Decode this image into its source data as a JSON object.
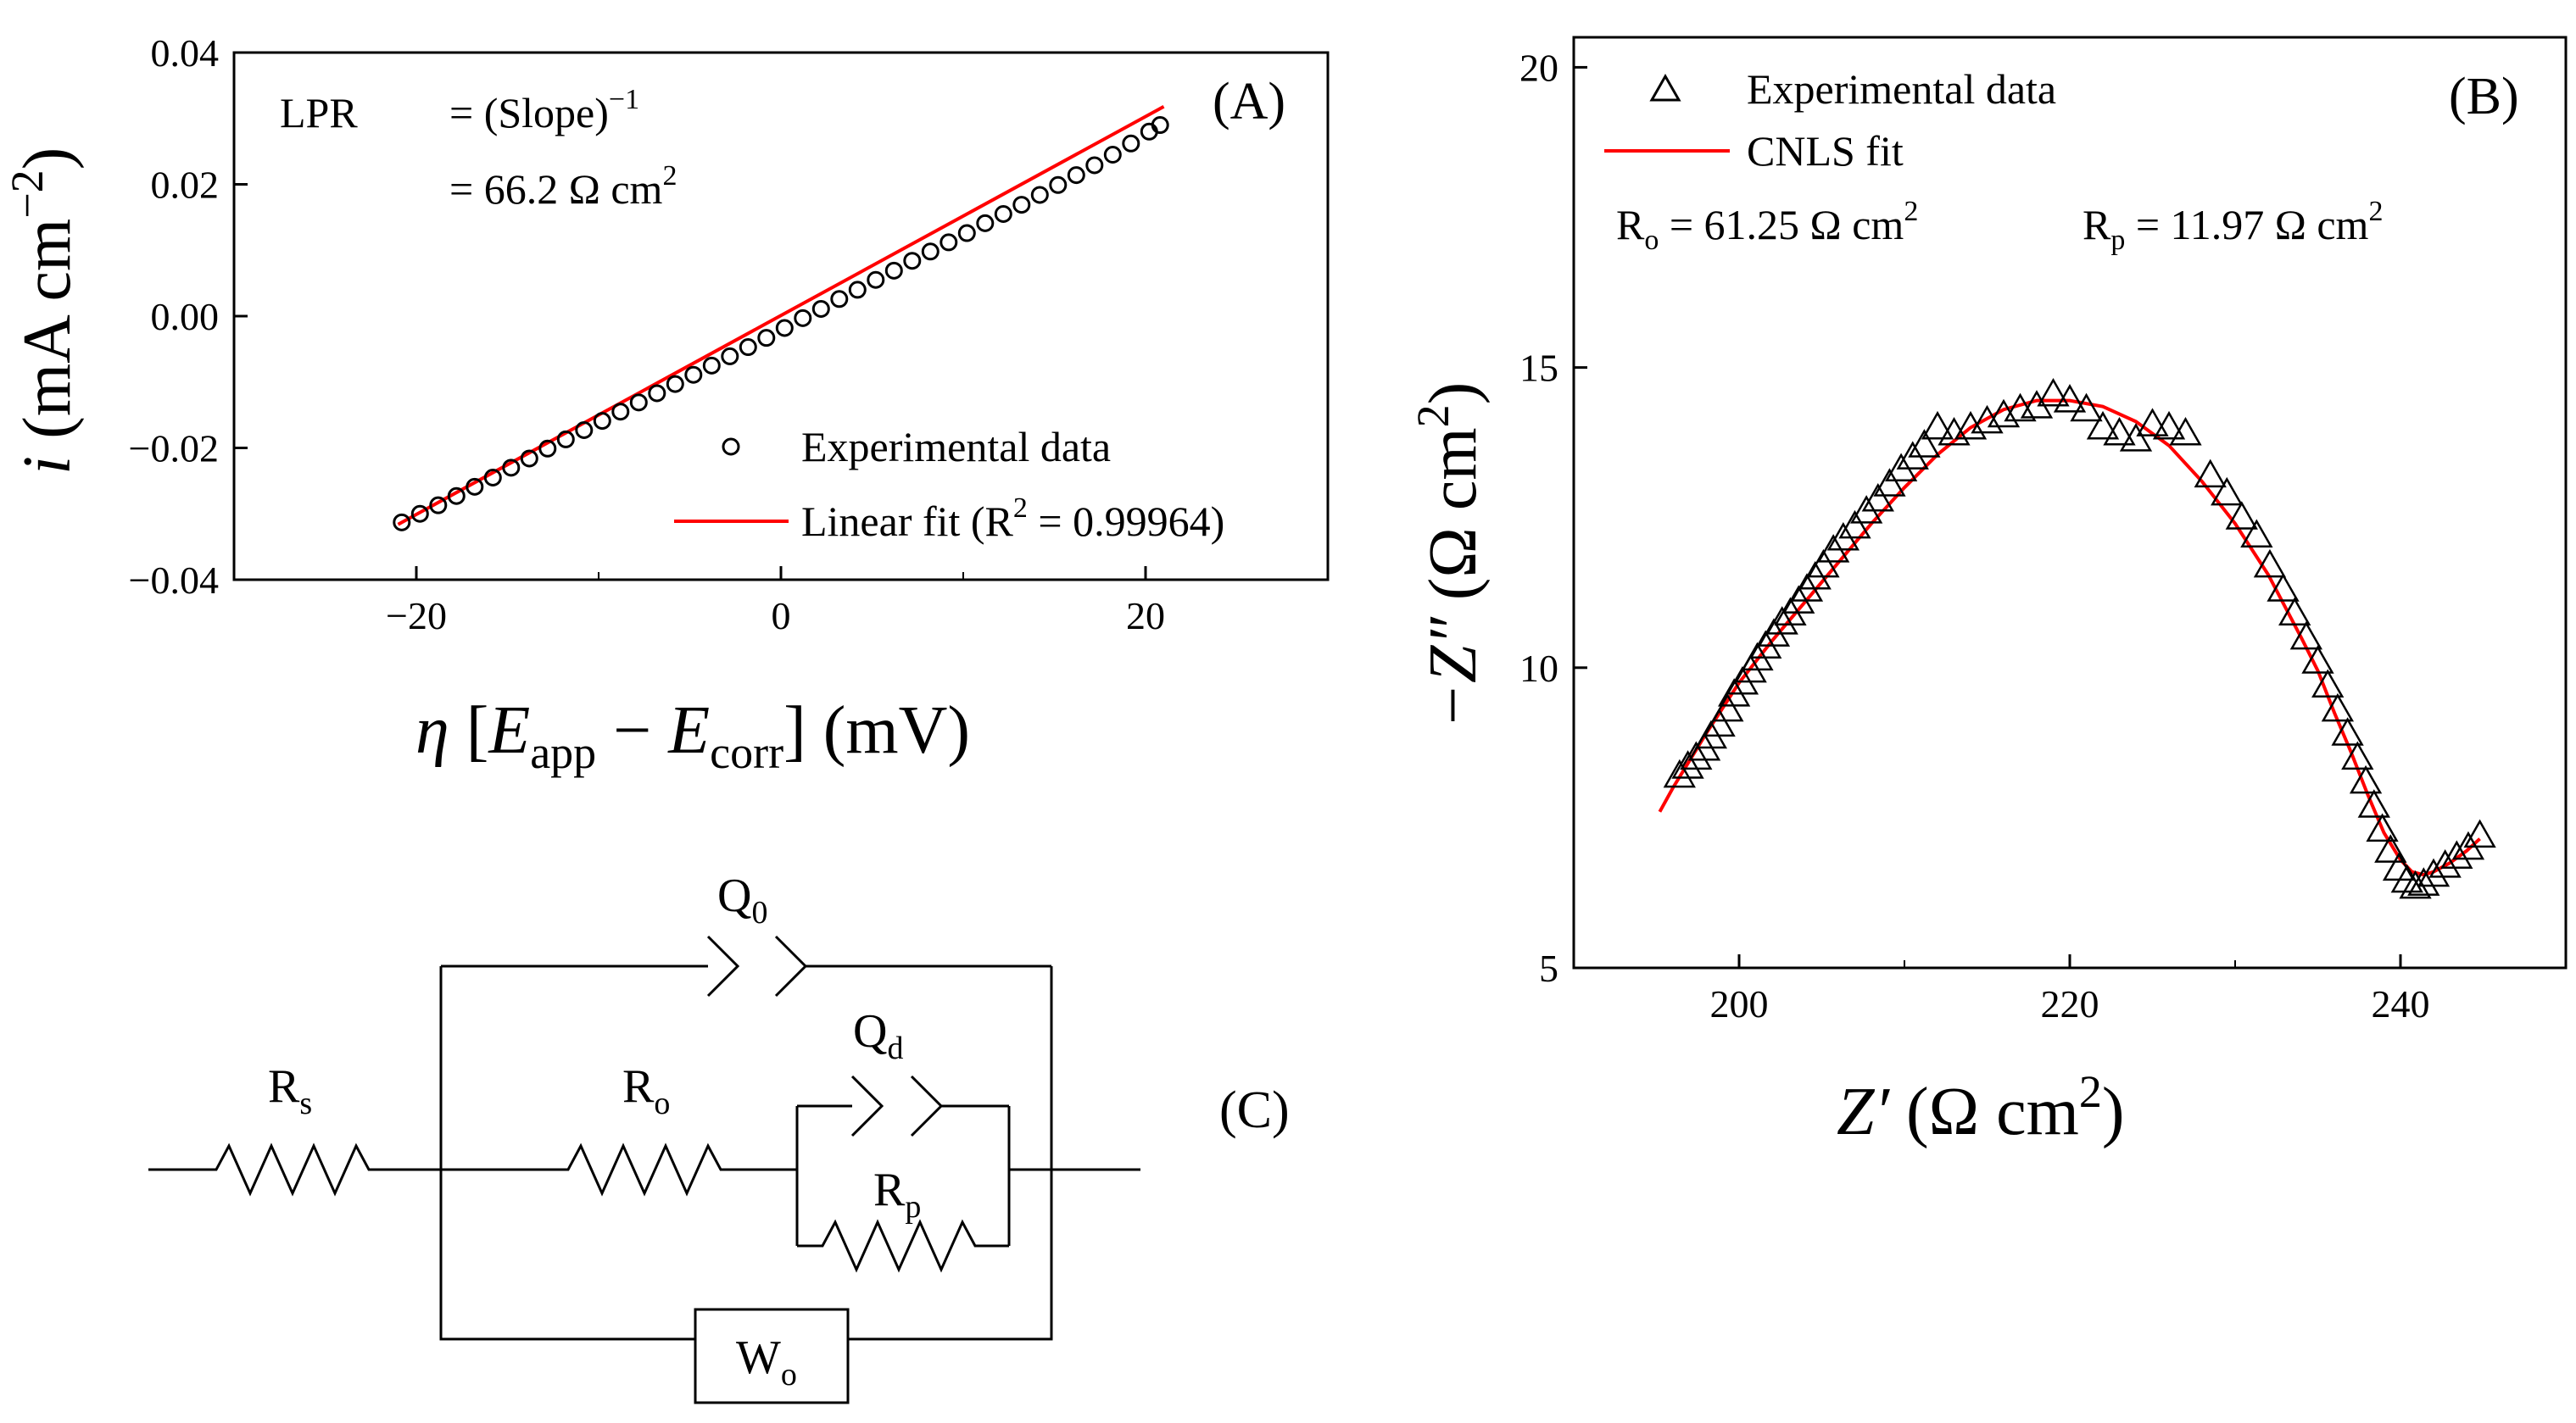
{
  "chart_data": [
    {
      "panel": "A",
      "type": "scatter",
      "panel_label": "(A)",
      "xlabel": {
        "symbol": "η",
        "bracket_open": "[",
        "e1": "E",
        "e1_sub": "app",
        "minus": "−",
        "e2": "E",
        "e2_sub": "corr",
        "bracket_close": "]",
        "unit": "(mV)"
      },
      "ylabel": {
        "symbol": "i",
        "unit": "(mA cm",
        "unit_exp": "−2",
        "unit_close": ")"
      },
      "xlim": [
        -30,
        30
      ],
      "ylim": [
        -0.04,
        0.04
      ],
      "xticks": [
        -20,
        0,
        20
      ],
      "xtick_labels": [
        "−20",
        "0",
        "20"
      ],
      "yticks": [
        -0.04,
        -0.02,
        0.0,
        0.02,
        0.04
      ],
      "ytick_labels": [
        "−0.04",
        "−0.02",
        "0.00",
        "0.02",
        "0.04"
      ],
      "annotations": {
        "lpr_label": "LPR",
        "eq1": "= (Slope)",
        "eq1_exp": "−1",
        "eq2": "= 66.2 Ω cm",
        "eq2_exp": "2"
      },
      "series": [
        {
          "name": "Experimental data",
          "kind": "points",
          "marker": "circle",
          "x": [
            -20.8,
            -19.8,
            -18.8,
            -17.8,
            -16.8,
            -15.8,
            -14.8,
            -13.8,
            -12.8,
            -11.8,
            -10.8,
            -9.8,
            -8.8,
            -7.8,
            -6.8,
            -5.8,
            -4.8,
            -3.8,
            -2.8,
            -1.8,
            -0.8,
            0.2,
            1.2,
            2.2,
            3.2,
            4.2,
            5.2,
            6.2,
            7.2,
            8.2,
            9.2,
            10.2,
            11.2,
            12.2,
            13.2,
            14.2,
            15.2,
            16.2,
            17.2,
            18.2,
            19.2,
            20.2,
            20.8
          ],
          "y": [
            -0.0313,
            -0.03,
            -0.0287,
            -0.0273,
            -0.0259,
            -0.0245,
            -0.023,
            -0.0216,
            -0.0201,
            -0.0187,
            -0.0173,
            -0.0159,
            -0.0145,
            -0.0131,
            -0.0117,
            -0.0103,
            -0.0089,
            -0.0075,
            -0.0061,
            -0.0047,
            -0.0033,
            -0.0018,
            -0.0003,
            0.0011,
            0.0026,
            0.004,
            0.0055,
            0.0069,
            0.0084,
            0.0098,
            0.0112,
            0.0126,
            0.0141,
            0.0155,
            0.0169,
            0.0184,
            0.0199,
            0.0214,
            0.0229,
            0.0245,
            0.0262,
            0.028,
            0.029
          ],
          "color": "#000000"
        },
        {
          "name": "Linear fit (R",
          "name_exp": "2",
          "name_tail": " = 0.99964)",
          "kind": "line",
          "x": [
            -21,
            21
          ],
          "y": [
            -0.0316,
            0.0318
          ],
          "color": "#ff0000"
        }
      ]
    },
    {
      "panel": "B",
      "type": "scatter",
      "panel_label": "(B)",
      "xlabel": {
        "symbol": "Z′",
        "unit": "(Ω cm",
        "unit_exp": "2",
        "unit_close": ")"
      },
      "ylabel": {
        "symbol": "−Z″",
        "unit": "(Ω cm",
        "unit_exp": "2",
        "unit_close": ")"
      },
      "xlim": [
        190,
        250
      ],
      "ylim": [
        5,
        20.5
      ],
      "xticks": [
        200,
        220,
        240
      ],
      "xtick_labels": [
        "200",
        "220",
        "240"
      ],
      "yticks": [
        5,
        10,
        15,
        20
      ],
      "ytick_labels": [
        "5",
        "10",
        "15",
        "20"
      ],
      "annotations": {
        "ro": "R",
        "ro_sub": "o",
        "ro_value": " = 61.25 Ω cm",
        "ro_exp": "2",
        "rp": "R",
        "rp_sub": "p",
        "rp_value": " = 11.97 Ω cm",
        "rp_exp": "2"
      },
      "series": [
        {
          "name": "Experimental data",
          "kind": "points",
          "marker": "triangle",
          "x": [
            196.4,
            196.9,
            197.4,
            197.9,
            198.3,
            198.8,
            199.3,
            199.7,
            200.2,
            200.7,
            201.1,
            201.6,
            202.1,
            202.6,
            203.1,
            203.6,
            204.1,
            204.6,
            205.1,
            205.7,
            206.3,
            207.0,
            207.7,
            208.4,
            209.1,
            209.8,
            210.5,
            211.2,
            212.0,
            213.0,
            214.0,
            215.0,
            216.0,
            217.0,
            218.0,
            219.0,
            220.0,
            221.0,
            222.0,
            223.0,
            224.0,
            225.0,
            226.0,
            227.0,
            228.5,
            229.5,
            230.4,
            231.3,
            232.1,
            232.9,
            233.6,
            234.3,
            235.0,
            235.6,
            236.2,
            236.8,
            237.4,
            237.9,
            238.4,
            238.9,
            239.4,
            239.9,
            240.4,
            240.9,
            241.4,
            242.0,
            242.7,
            243.4,
            244.1,
            244.8
          ],
          "y": [
            8.2,
            8.35,
            8.5,
            8.65,
            8.85,
            9.05,
            9.3,
            9.55,
            9.75,
            9.95,
            10.15,
            10.35,
            10.55,
            10.75,
            10.9,
            11.1,
            11.3,
            11.5,
            11.7,
            11.95,
            12.15,
            12.35,
            12.6,
            12.8,
            13.05,
            13.3,
            13.5,
            13.7,
            14.0,
            13.9,
            14.0,
            14.1,
            14.2,
            14.3,
            14.35,
            14.55,
            14.45,
            14.3,
            14.0,
            13.9,
            13.8,
            14.05,
            14.0,
            13.9,
            13.2,
            12.9,
            12.5,
            12.2,
            11.7,
            11.3,
            10.9,
            10.5,
            10.1,
            9.7,
            9.3,
            8.9,
            8.5,
            8.1,
            7.7,
            7.3,
            6.95,
            6.65,
            6.45,
            6.35,
            6.4,
            6.55,
            6.7,
            6.85,
            7.0,
            7.2
          ],
          "color": "#000000"
        },
        {
          "name": "CNLS fit",
          "kind": "line",
          "x": [
            195.2,
            196.0,
            197.0,
            198.0,
            200.0,
            202.0,
            204.0,
            206.0,
            208.0,
            210.0,
            212.0,
            214.0,
            216.0,
            218.0,
            220.0,
            222.0,
            224.0,
            226.0,
            228.0,
            230.0,
            232.0,
            234.0,
            235.0,
            236.0,
            237.0,
            238.0,
            239.0,
            240.0,
            240.7,
            241.4,
            242.0,
            243.0,
            244.0,
            244.8
          ],
          "y": [
            7.6,
            8.0,
            8.45,
            8.9,
            9.75,
            10.45,
            11.1,
            11.75,
            12.4,
            13.0,
            13.55,
            14.0,
            14.3,
            14.45,
            14.45,
            14.35,
            14.1,
            13.7,
            13.1,
            12.4,
            11.55,
            10.5,
            9.95,
            9.25,
            8.6,
            7.9,
            7.25,
            6.8,
            6.6,
            6.55,
            6.6,
            6.75,
            6.95,
            7.15
          ],
          "color": "#ff0000"
        }
      ]
    }
  ],
  "circuit": {
    "panel_label": "(C)",
    "components": {
      "rs": {
        "main": "R",
        "sub": "s"
      },
      "q0": {
        "main": "Q",
        "sub": "0"
      },
      "ro": {
        "main": "R",
        "sub": "o"
      },
      "qd": {
        "main": "Q",
        "sub": "d"
      },
      "rp": {
        "main": "R",
        "sub": "p"
      },
      "wo": {
        "main": "W",
        "sub": "o"
      }
    }
  }
}
